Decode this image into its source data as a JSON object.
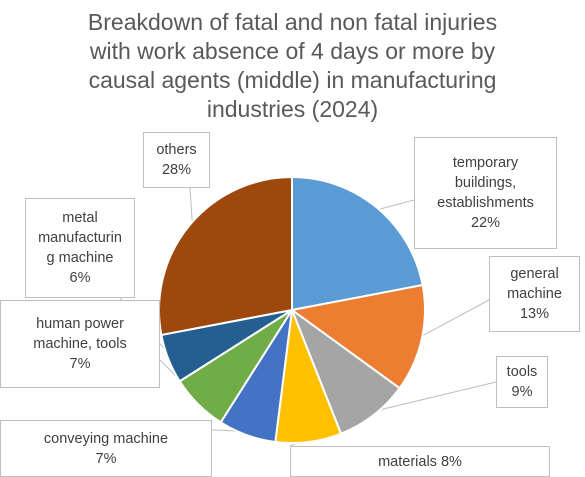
{
  "chart_data": {
    "type": "pie",
    "title_lines": [
      "Breakdown of fatal and non fatal injuries",
      "with work absence of 4 days or more by",
      "causal agents (middle) in manufacturing",
      "industries (2024)"
    ],
    "categories": [
      "temporary buildings, establishments",
      "general machine",
      "tools",
      "materials",
      "conveying machine",
      "human power machine, tools",
      "metal manufacturing machine",
      "others"
    ],
    "values": [
      22,
      13,
      9,
      8,
      7,
      7,
      6,
      28
    ],
    "value_labels": [
      "22%",
      "13%",
      "9%",
      "8%",
      "7%",
      "7%",
      "6%",
      "28%"
    ],
    "label_lines": [
      [
        "temporary",
        "buildings,",
        "establishments",
        "22%"
      ],
      [
        "general",
        "machine",
        "13%"
      ],
      [
        "tools",
        "9%"
      ],
      [
        "materials 8%"
      ],
      [
        "conveying machine",
        "7%"
      ],
      [
        "human power",
        "machine, tools",
        "7%"
      ],
      [
        "metal",
        "manufacturin",
        "g machine",
        "6%"
      ],
      [
        "others",
        "28%"
      ]
    ],
    "colors": [
      "#5B9BD5",
      "#ED7D31",
      "#A5A5A5",
      "#FFC000",
      "#4472C4",
      "#70AD47",
      "#255E91",
      "#9E480E"
    ],
    "start_angle_deg": 0,
    "direction": "clockwise",
    "legend": "none",
    "data_labels": "callout"
  }
}
